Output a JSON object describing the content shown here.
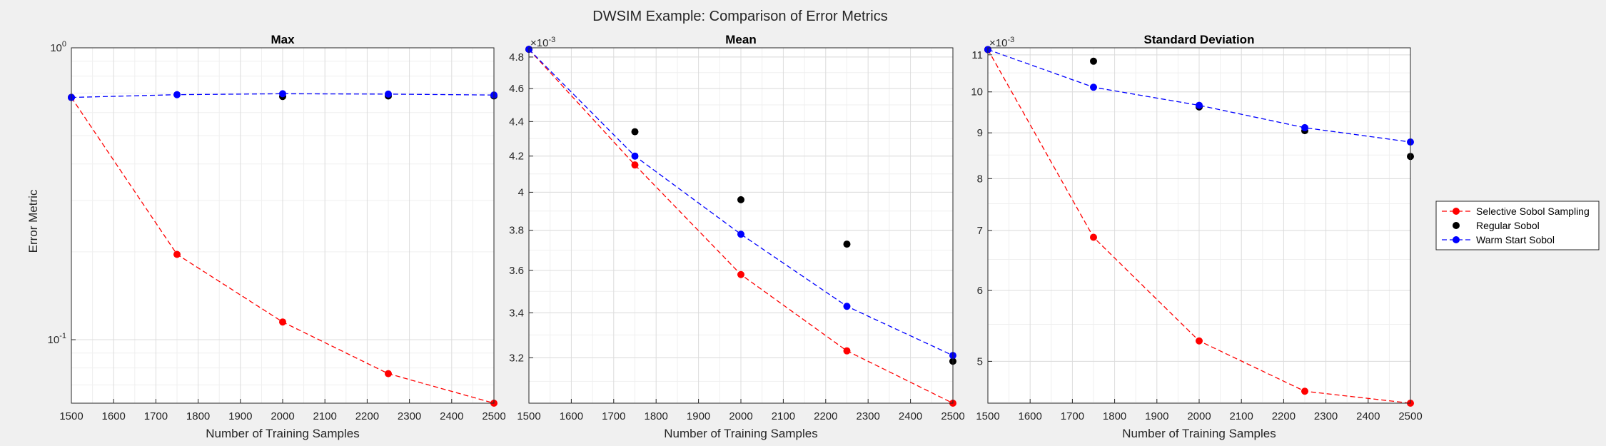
{
  "figure": {
    "title": "DWSIM Example: Comparison of Error Metrics",
    "ylabel": "Error Metric",
    "xlabel": "Number of Training Samples"
  },
  "legend": {
    "placement": "outside-right",
    "entries": [
      {
        "label": "Selective Sobol Sampling",
        "color": "#ff0000",
        "style": "dashed-marker"
      },
      {
        "label": "Regular Sobol",
        "color": "#000000",
        "style": "marker"
      },
      {
        "label": "Warm Start Sobol",
        "color": "#0000ff",
        "style": "dashed-marker"
      }
    ]
  },
  "chart_data": [
    {
      "type": "line",
      "title": "Max",
      "xlabel": "Number of Training Samples",
      "ylabel": "Error Metric",
      "yscale": "log",
      "xlim": [
        1500,
        2500
      ],
      "ylim": [
        0.0606,
        1
      ],
      "grid": true,
      "xticks": [
        1500,
        1600,
        1700,
        1800,
        1900,
        2000,
        2100,
        2200,
        2300,
        2400,
        2500
      ],
      "yticks": [
        {
          "value": 0.1,
          "base": "10",
          "exp": "-1"
        },
        {
          "value": 1,
          "base": "10",
          "exp": "0"
        }
      ],
      "series": [
        {
          "name": "Selective Sobol Sampling",
          "color": "#ff0000",
          "line": "dashed",
          "x": [
            1500,
            1750,
            2000,
            2250,
            2500
          ],
          "y": [
            0.676,
            0.196,
            0.115,
            0.0765,
            0.0606
          ]
        },
        {
          "name": "Regular Sobol",
          "color": "#000000",
          "line": "none",
          "x": [
            1500,
            2000,
            2250,
            2500
          ],
          "y": [
            0.676,
            0.681,
            0.684,
            0.684
          ]
        },
        {
          "name": "Warm Start Sobol",
          "color": "#0000ff",
          "line": "dashed",
          "x": [
            1500,
            1750,
            2000,
            2250,
            2500
          ],
          "y": [
            0.676,
            0.691,
            0.696,
            0.694,
            0.689
          ]
        }
      ]
    },
    {
      "type": "line",
      "title": "Mean",
      "xlabel": "Number of Training Samples",
      "yscale": "log",
      "exponent": "-3",
      "xlim": [
        1500,
        2500
      ],
      "ylim": [
        3.01,
        4.86
      ],
      "grid": true,
      "xticks": [
        1500,
        1600,
        1700,
        1800,
        1900,
        2000,
        2100,
        2200,
        2300,
        2400,
        2500
      ],
      "yticks": [
        3.2,
        3.4,
        3.6,
        3.8,
        4,
        4.2,
        4.4,
        4.6,
        4.8
      ],
      "series": [
        {
          "name": "Selective Sobol Sampling",
          "color": "#ff0000",
          "line": "dashed",
          "x": [
            1500,
            1750,
            2000,
            2250,
            2500
          ],
          "y": [
            4.85,
            4.15,
            3.58,
            3.23,
            3.01
          ]
        },
        {
          "name": "Regular Sobol",
          "color": "#000000",
          "line": "none",
          "x": [
            1500,
            1750,
            2000,
            2250,
            2500
          ],
          "y": [
            4.85,
            4.34,
            3.96,
            3.73,
            3.185
          ]
        },
        {
          "name": "Warm Start Sobol",
          "color": "#0000ff",
          "line": "dashed",
          "x": [
            1500,
            1750,
            2000,
            2250,
            2500
          ],
          "y": [
            4.85,
            4.2,
            3.78,
            3.43,
            3.21
          ]
        }
      ]
    },
    {
      "type": "line",
      "title": "Standard Deviation",
      "xlabel": "Number of Training Samples",
      "yscale": "log",
      "exponent": "-3",
      "xlim": [
        1500,
        2500
      ],
      "ylim": [
        4.49,
        11.2
      ],
      "grid": true,
      "xticks": [
        1500,
        1600,
        1700,
        1800,
        1900,
        2000,
        2100,
        2200,
        2300,
        2400,
        2500
      ],
      "yticks": [
        5,
        6,
        7,
        8,
        9,
        10,
        11
      ],
      "series": [
        {
          "name": "Selective Sobol Sampling",
          "color": "#ff0000",
          "line": "dashed",
          "x": [
            1500,
            1750,
            2000,
            2250,
            2500
          ],
          "y": [
            11.15,
            6.88,
            5.27,
            4.63,
            4.49
          ]
        },
        {
          "name": "Regular Sobol",
          "color": "#000000",
          "line": "none",
          "x": [
            1500,
            1750,
            2000,
            2250,
            2500
          ],
          "y": [
            11.15,
            10.82,
            9.62,
            9.05,
            8.47
          ]
        },
        {
          "name": "Warm Start Sobol",
          "color": "#0000ff",
          "line": "dashed",
          "x": [
            1500,
            1750,
            2000,
            2250,
            2500
          ],
          "y": [
            11.15,
            10.12,
            9.66,
            9.12,
            8.79
          ]
        }
      ]
    }
  ]
}
